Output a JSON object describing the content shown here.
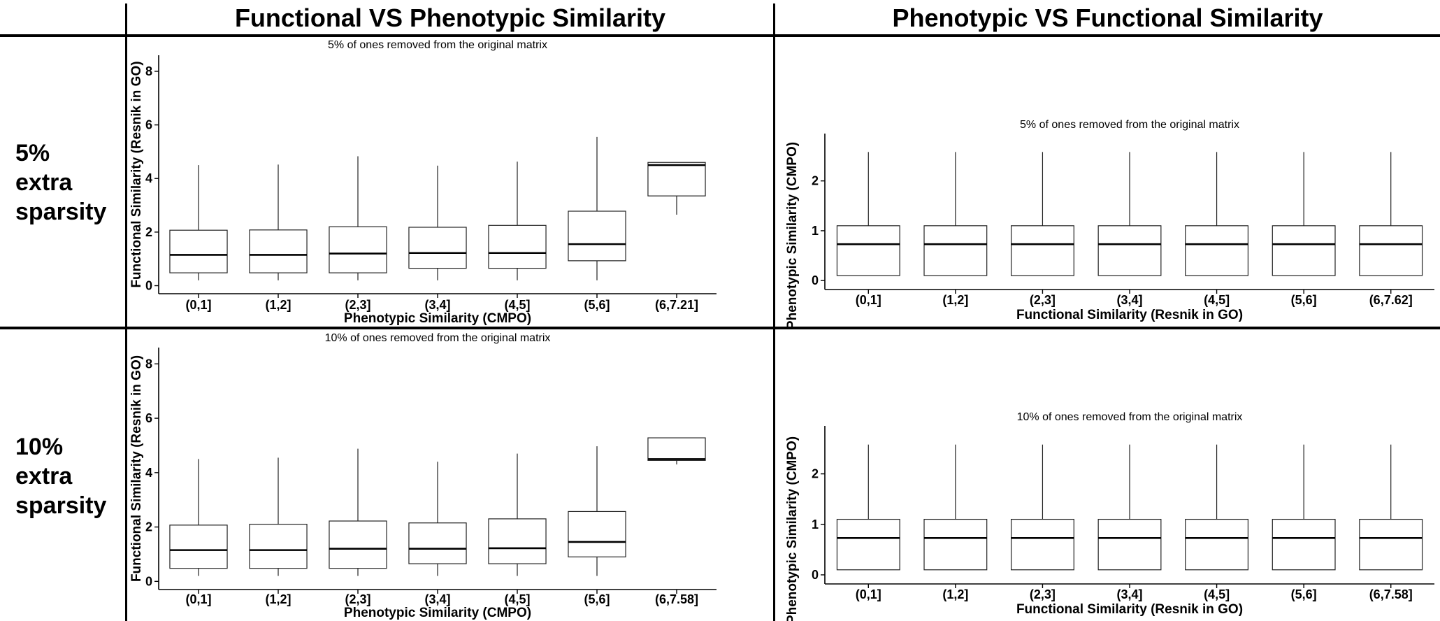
{
  "figure": {
    "column_titles": [
      "Functional VS Phenotypic Similarity",
      "Phenotypic VS Functional Similarity"
    ],
    "row_titles": [
      [
        "5%",
        "extra",
        "sparsity"
      ],
      [
        "10%",
        "extra",
        "sparsity"
      ]
    ]
  },
  "chart_data": [
    {
      "type": "box",
      "title": "5% of ones removed from the original matrix",
      "xlabel": "Phenotypic Similarity (CMPO)",
      "ylabel": "Functional Similarity (Resnik in GO)",
      "ylim": [
        -0.3,
        8.6
      ],
      "yticks": [
        0,
        2,
        4,
        6,
        8
      ],
      "categories": [
        "(0,1]",
        "(1,2]",
        "(2,3]",
        "(3,4]",
        "(4,5]",
        "(5,6]",
        "(6,7.21]"
      ],
      "boxes": [
        {
          "whisker_low": 0.2,
          "q1": 0.48,
          "median": 1.15,
          "q3": 2.07,
          "whisker_high": 4.5
        },
        {
          "whisker_low": 0.2,
          "q1": 0.48,
          "median": 1.15,
          "q3": 2.08,
          "whisker_high": 4.52
        },
        {
          "whisker_low": 0.2,
          "q1": 0.48,
          "median": 1.2,
          "q3": 2.2,
          "whisker_high": 4.83
        },
        {
          "whisker_low": 0.2,
          "q1": 0.65,
          "median": 1.22,
          "q3": 2.18,
          "whisker_high": 4.48
        },
        {
          "whisker_low": 0.2,
          "q1": 0.65,
          "median": 1.22,
          "q3": 2.25,
          "whisker_high": 4.63
        },
        {
          "whisker_low": 0.2,
          "q1": 0.93,
          "median": 1.55,
          "q3": 2.78,
          "whisker_high": 5.55
        },
        {
          "whisker_low": 2.65,
          "q1": 3.35,
          "median": 4.5,
          "q3": 4.6,
          "whisker_high": 4.6
        }
      ]
    },
    {
      "type": "box",
      "title": "5% of ones removed from the original matrix",
      "xlabel": "Functional Similarity (Resnik in GO)",
      "ylabel": "Phenotypic Similarity (CMPO)",
      "ylim": [
        -0.18,
        2.95
      ],
      "yticks": [
        0,
        1,
        2
      ],
      "categories": [
        "(0,1]",
        "(1,2]",
        "(2,3]",
        "(3,4]",
        "(4,5]",
        "(5,6]",
        "(6,7.62]"
      ],
      "boxes": [
        {
          "whisker_low": 0.1,
          "q1": 0.1,
          "median": 0.73,
          "q3": 1.1,
          "whisker_high": 2.58
        },
        {
          "whisker_low": 0.1,
          "q1": 0.1,
          "median": 0.73,
          "q3": 1.1,
          "whisker_high": 2.58
        },
        {
          "whisker_low": 0.1,
          "q1": 0.1,
          "median": 0.73,
          "q3": 1.1,
          "whisker_high": 2.58
        },
        {
          "whisker_low": 0.1,
          "q1": 0.1,
          "median": 0.73,
          "q3": 1.1,
          "whisker_high": 2.58
        },
        {
          "whisker_low": 0.1,
          "q1": 0.1,
          "median": 0.73,
          "q3": 1.1,
          "whisker_high": 2.58
        },
        {
          "whisker_low": 0.1,
          "q1": 0.1,
          "median": 0.73,
          "q3": 1.1,
          "whisker_high": 2.58
        },
        {
          "whisker_low": 0.1,
          "q1": 0.1,
          "median": 0.73,
          "q3": 1.1,
          "whisker_high": 2.58
        }
      ]
    },
    {
      "type": "box",
      "title": "10% of ones removed from the original matrix",
      "xlabel": "Phenotypic Similarity (CMPO)",
      "ylabel": "Functional Similarity (Resnik in GO)",
      "ylim": [
        -0.3,
        8.6
      ],
      "yticks": [
        0,
        2,
        4,
        6,
        8
      ],
      "categories": [
        "(0,1]",
        "(1,2]",
        "(2,3]",
        "(3,4]",
        "(4,5]",
        "(5,6]",
        "(6,7.58]"
      ],
      "boxes": [
        {
          "whisker_low": 0.2,
          "q1": 0.48,
          "median": 1.15,
          "q3": 2.07,
          "whisker_high": 4.5
        },
        {
          "whisker_low": 0.2,
          "q1": 0.48,
          "median": 1.15,
          "q3": 2.1,
          "whisker_high": 4.55
        },
        {
          "whisker_low": 0.2,
          "q1": 0.48,
          "median": 1.2,
          "q3": 2.22,
          "whisker_high": 4.88
        },
        {
          "whisker_low": 0.2,
          "q1": 0.65,
          "median": 1.2,
          "q3": 2.15,
          "whisker_high": 4.4
        },
        {
          "whisker_low": 0.2,
          "q1": 0.65,
          "median": 1.22,
          "q3": 2.3,
          "whisker_high": 4.7
        },
        {
          "whisker_low": 0.2,
          "q1": 0.9,
          "median": 1.45,
          "q3": 2.57,
          "whisker_high": 4.97
        },
        {
          "whisker_low": 4.3,
          "q1": 4.45,
          "median": 4.5,
          "q3": 5.28,
          "whisker_high": 5.28
        }
      ]
    },
    {
      "type": "box",
      "title": "10% of ones removed from the original matrix",
      "xlabel": "Functional Similarity (Resnik in GO)",
      "ylabel": "Phenotypic Similarity (CMPO)",
      "ylim": [
        -0.18,
        2.95
      ],
      "yticks": [
        0,
        1,
        2
      ],
      "categories": [
        "(0,1]",
        "(1,2]",
        "(2,3]",
        "(3,4]",
        "(4,5]",
        "(5,6]",
        "(6,7.58]"
      ],
      "boxes": [
        {
          "whisker_low": 0.1,
          "q1": 0.1,
          "median": 0.73,
          "q3": 1.1,
          "whisker_high": 2.58
        },
        {
          "whisker_low": 0.1,
          "q1": 0.1,
          "median": 0.73,
          "q3": 1.1,
          "whisker_high": 2.58
        },
        {
          "whisker_low": 0.1,
          "q1": 0.1,
          "median": 0.73,
          "q3": 1.1,
          "whisker_high": 2.58
        },
        {
          "whisker_low": 0.1,
          "q1": 0.1,
          "median": 0.73,
          "q3": 1.1,
          "whisker_high": 2.58
        },
        {
          "whisker_low": 0.1,
          "q1": 0.1,
          "median": 0.73,
          "q3": 1.1,
          "whisker_high": 2.58
        },
        {
          "whisker_low": 0.1,
          "q1": 0.1,
          "median": 0.73,
          "q3": 1.1,
          "whisker_high": 2.58
        },
        {
          "whisker_low": 0.1,
          "q1": 0.1,
          "median": 0.73,
          "q3": 1.1,
          "whisker_high": 2.58
        }
      ]
    }
  ]
}
